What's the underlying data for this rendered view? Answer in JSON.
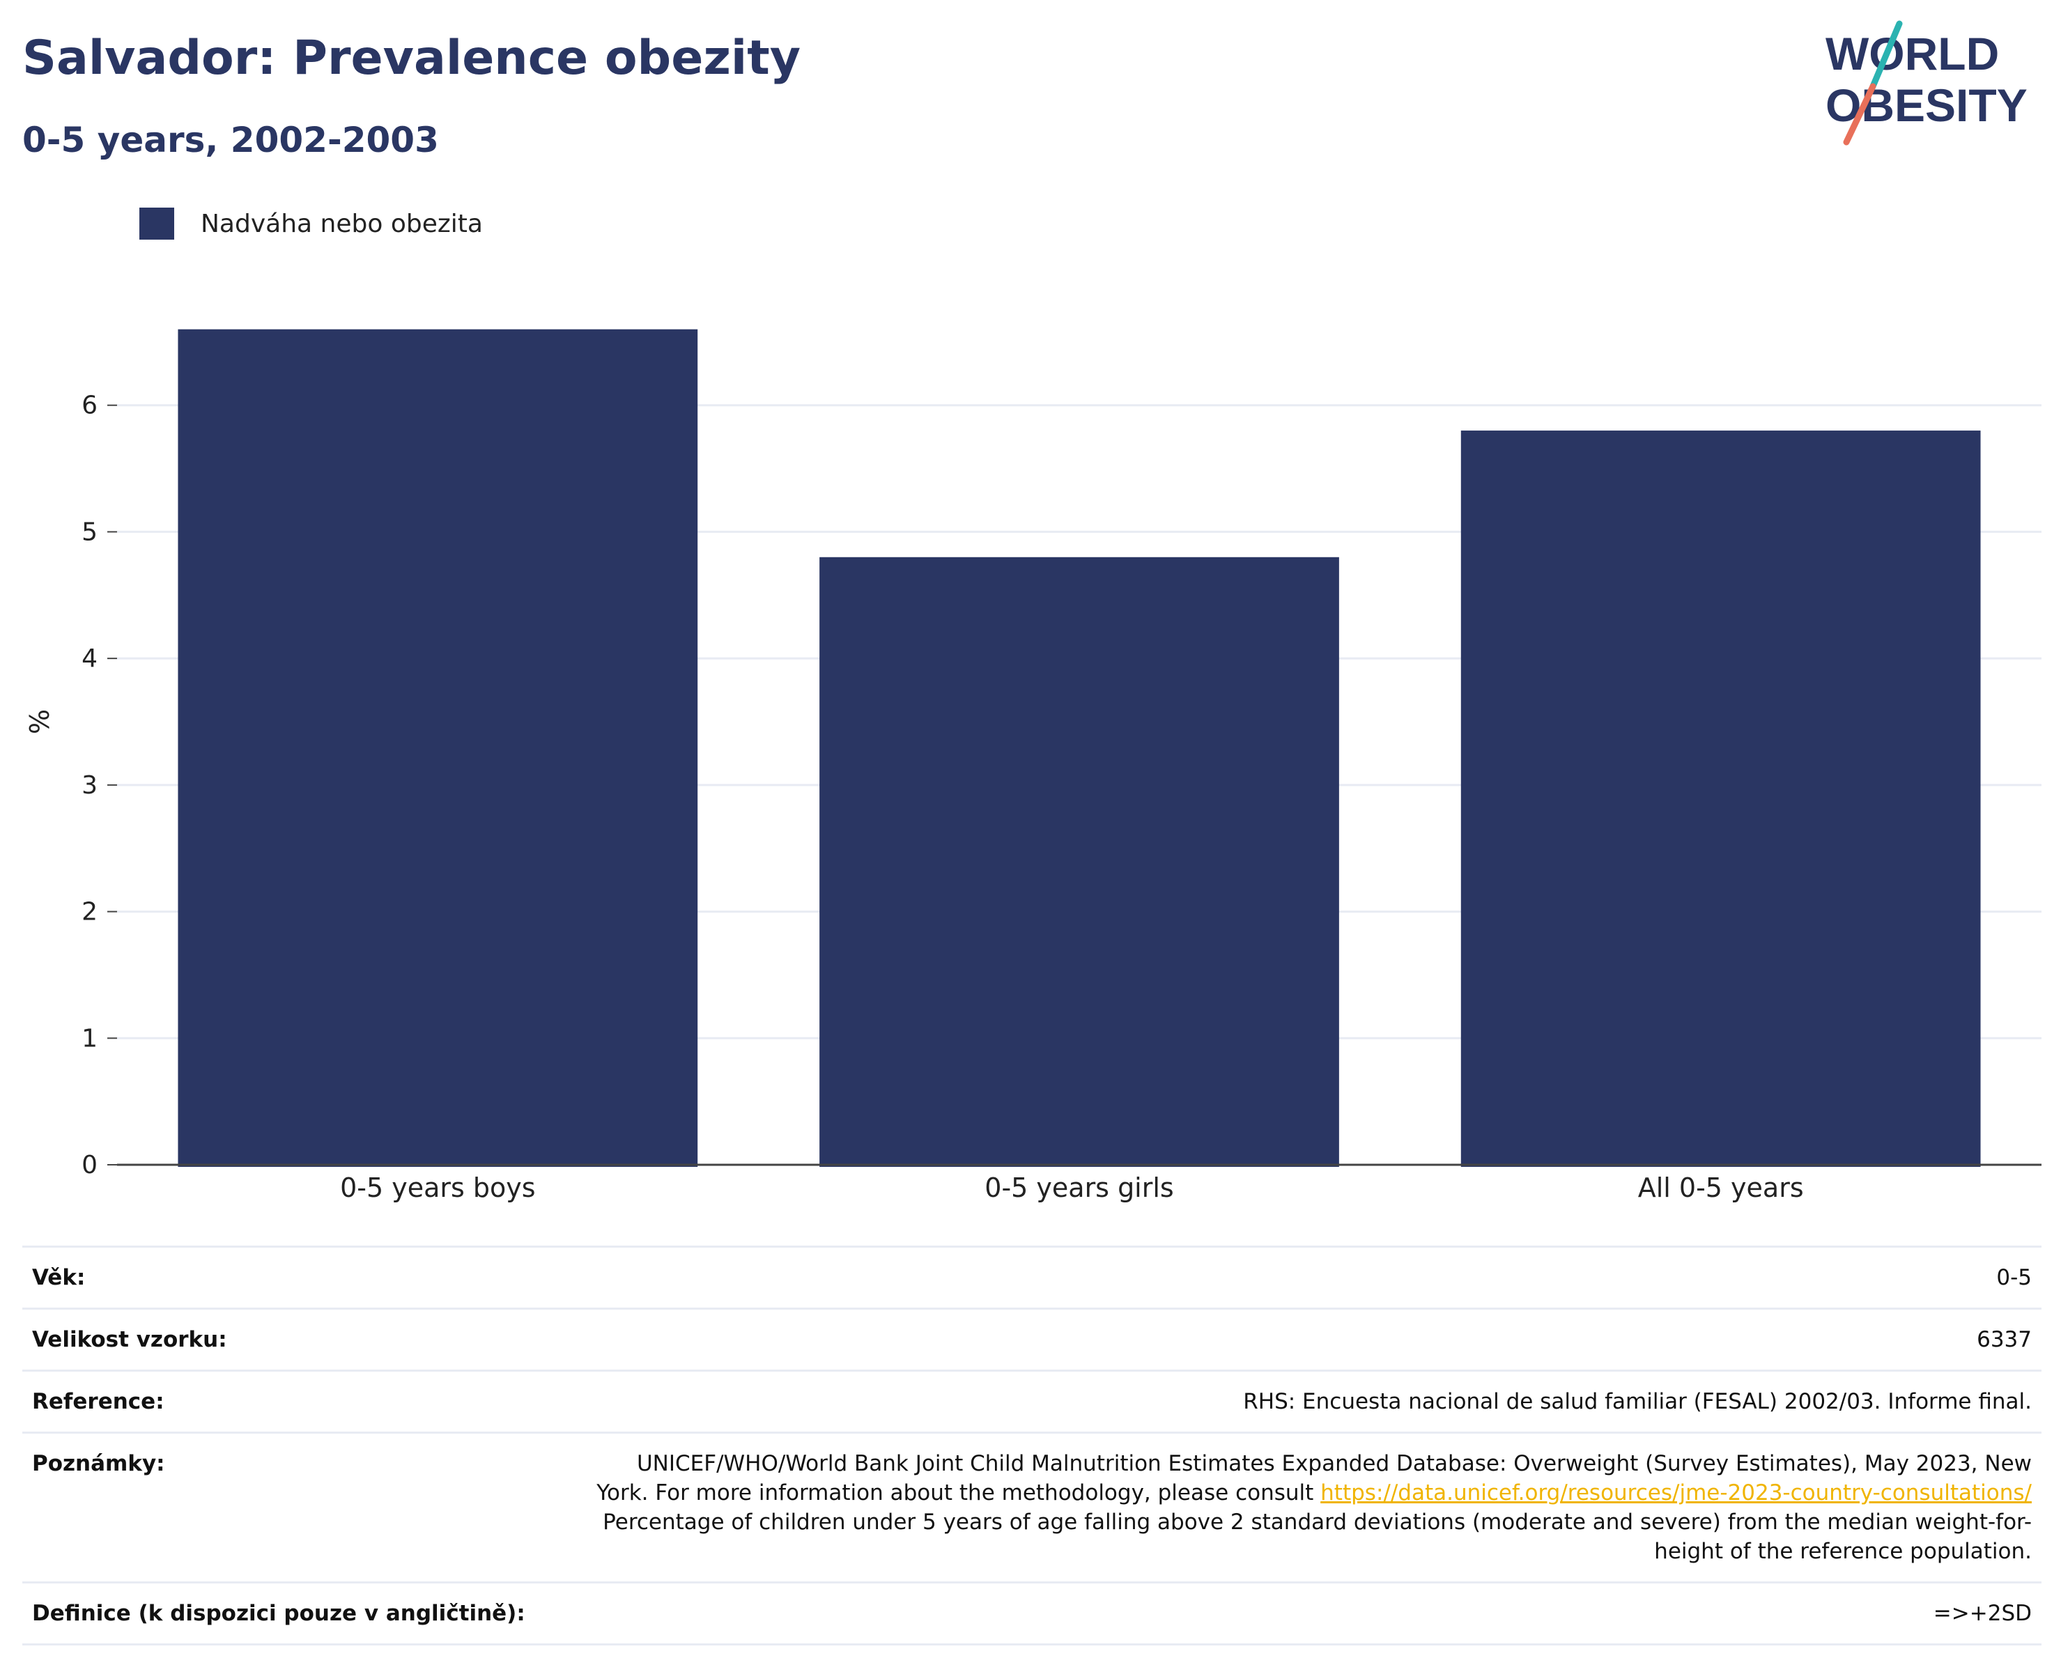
{
  "title": "Salvador: Prevalence obezity",
  "subtitle": "0-5 years, 2002-2003",
  "logo": {
    "line1": "WORLD",
    "line2": "OBESITY"
  },
  "legend": {
    "label": "Nadváha nebo obezita",
    "color": "#2a3663"
  },
  "chart_data": {
    "type": "bar",
    "categories": [
      "0-5 years boys",
      "0-5 years girls",
      "All 0-5 years"
    ],
    "series": [
      {
        "name": "Nadváha nebo obezita",
        "values": [
          6.6,
          4.8,
          5.8
        ]
      }
    ],
    "ylabel": "%",
    "ylim": [
      0,
      7
    ],
    "yticks": [
      0,
      1,
      2,
      3,
      4,
      5,
      6
    ],
    "grid": true,
    "legend_position": "top-left",
    "bar_color": "#2a3663"
  },
  "info": {
    "age_label": "Věk:",
    "age_value": "0-5",
    "sample_label": "Velikost vzorku:",
    "sample_value": "6337",
    "reference_label": "Reference:",
    "reference_value": "RHS: Encuesta nacional de salud familiar (FESAL) 2002/03. Informe final.",
    "notes_label": "Poznámky:",
    "notes_text_1": "UNICEF/WHO/World Bank Joint Child Malnutrition Estimates Expanded Database: Overweight (Survey Estimates), May 2023, New York. For more information about the methodology, please consult ",
    "notes_link": "https://data.unicef.org/resources/jme-2023-country-consultations/",
    "notes_text_2": " Percentage of children under 5 years of age falling above 2 standard deviations (moderate and severe) from the median weight-for-height of the reference population.",
    "definition_label": "Definice (k dispozici pouze v angličtině):",
    "definition_value": "=>+2SD"
  }
}
